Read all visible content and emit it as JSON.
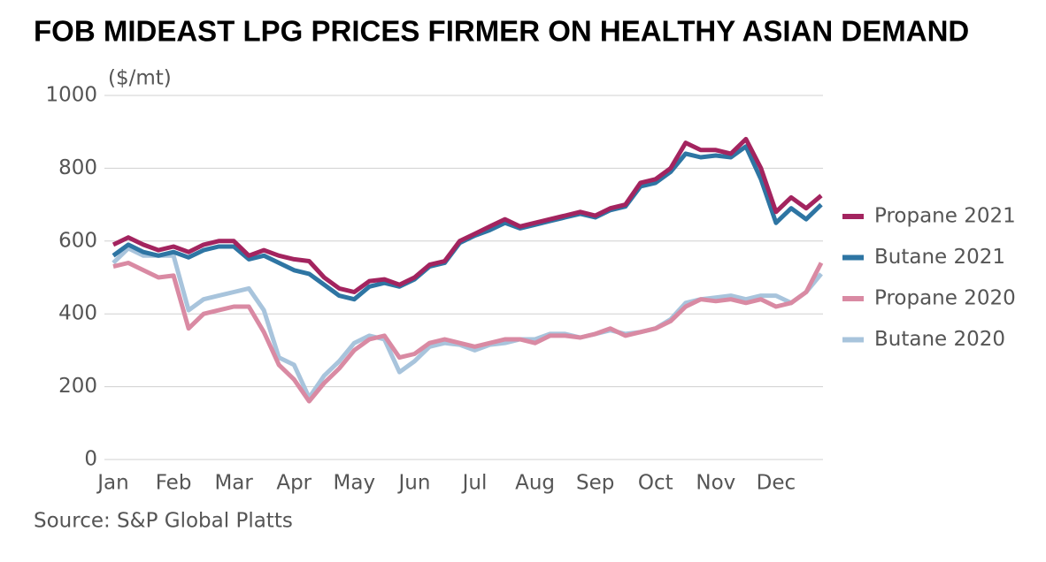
{
  "chart_data": {
    "type": "line",
    "title": "FOB MIDEAST LPG PRICES FIRMER ON HEALTHY ASIAN DEMAND",
    "y_label": "($/mt)",
    "source": "Source: S&P Global Platts",
    "categories": [
      "Jan",
      null,
      null,
      null,
      "Feb",
      null,
      null,
      null,
      "Mar",
      null,
      null,
      null,
      "Apr",
      null,
      null,
      null,
      "May",
      null,
      null,
      null,
      "Jun",
      null,
      null,
      null,
      "Jul",
      null,
      null,
      null,
      "Aug",
      null,
      null,
      null,
      "Sep",
      null,
      null,
      null,
      "Oct",
      null,
      null,
      null,
      "Nov",
      null,
      null,
      null,
      "Dec",
      null,
      null,
      null
    ],
    "series": [
      {
        "name": "Propane 2021",
        "color": "#a3245f",
        "values": [
          590,
          610,
          590,
          575,
          585,
          570,
          590,
          600,
          600,
          560,
          575,
          560,
          550,
          545,
          500,
          470,
          460,
          490,
          495,
          480,
          500,
          535,
          545,
          600,
          620,
          640,
          660,
          640,
          650,
          660,
          670,
          680,
          670,
          690,
          700,
          760,
          770,
          800,
          870,
          850,
          850,
          840,
          880,
          800,
          680,
          720,
          690,
          725
        ]
      },
      {
        "name": "Butane 2021",
        "color": "#2e75a3",
        "values": [
          560,
          590,
          570,
          560,
          570,
          555,
          575,
          585,
          585,
          550,
          560,
          540,
          520,
          510,
          480,
          450,
          440,
          475,
          485,
          475,
          495,
          530,
          540,
          595,
          615,
          630,
          650,
          635,
          645,
          655,
          665,
          675,
          665,
          685,
          695,
          750,
          760,
          790,
          840,
          830,
          835,
          830,
          860,
          770,
          650,
          690,
          660,
          700
        ]
      },
      {
        "name": "Propane 2020",
        "color": "#d98aa3",
        "values": [
          530,
          540,
          520,
          500,
          505,
          360,
          400,
          410,
          420,
          420,
          350,
          260,
          220,
          160,
          210,
          250,
          300,
          330,
          340,
          280,
          290,
          320,
          330,
          320,
          310,
          320,
          330,
          330,
          320,
          340,
          340,
          335,
          345,
          360,
          340,
          350,
          360,
          380,
          420,
          440,
          435,
          440,
          430,
          440,
          420,
          430,
          460,
          540
        ]
      },
      {
        "name": "Butane 2020",
        "color": "#a8c4dc",
        "values": [
          540,
          580,
          560,
          560,
          560,
          410,
          440,
          450,
          460,
          470,
          410,
          280,
          260,
          170,
          230,
          270,
          320,
          340,
          330,
          240,
          270,
          310,
          320,
          315,
          300,
          315,
          320,
          330,
          330,
          345,
          345,
          335,
          345,
          355,
          345,
          350,
          360,
          385,
          430,
          440,
          445,
          450,
          440,
          450,
          450,
          430,
          460,
          510
        ]
      }
    ],
    "ylim": [
      0,
      1000
    ],
    "yticks": [
      0,
      200,
      400,
      600,
      800,
      1000
    ],
    "grid": true
  }
}
